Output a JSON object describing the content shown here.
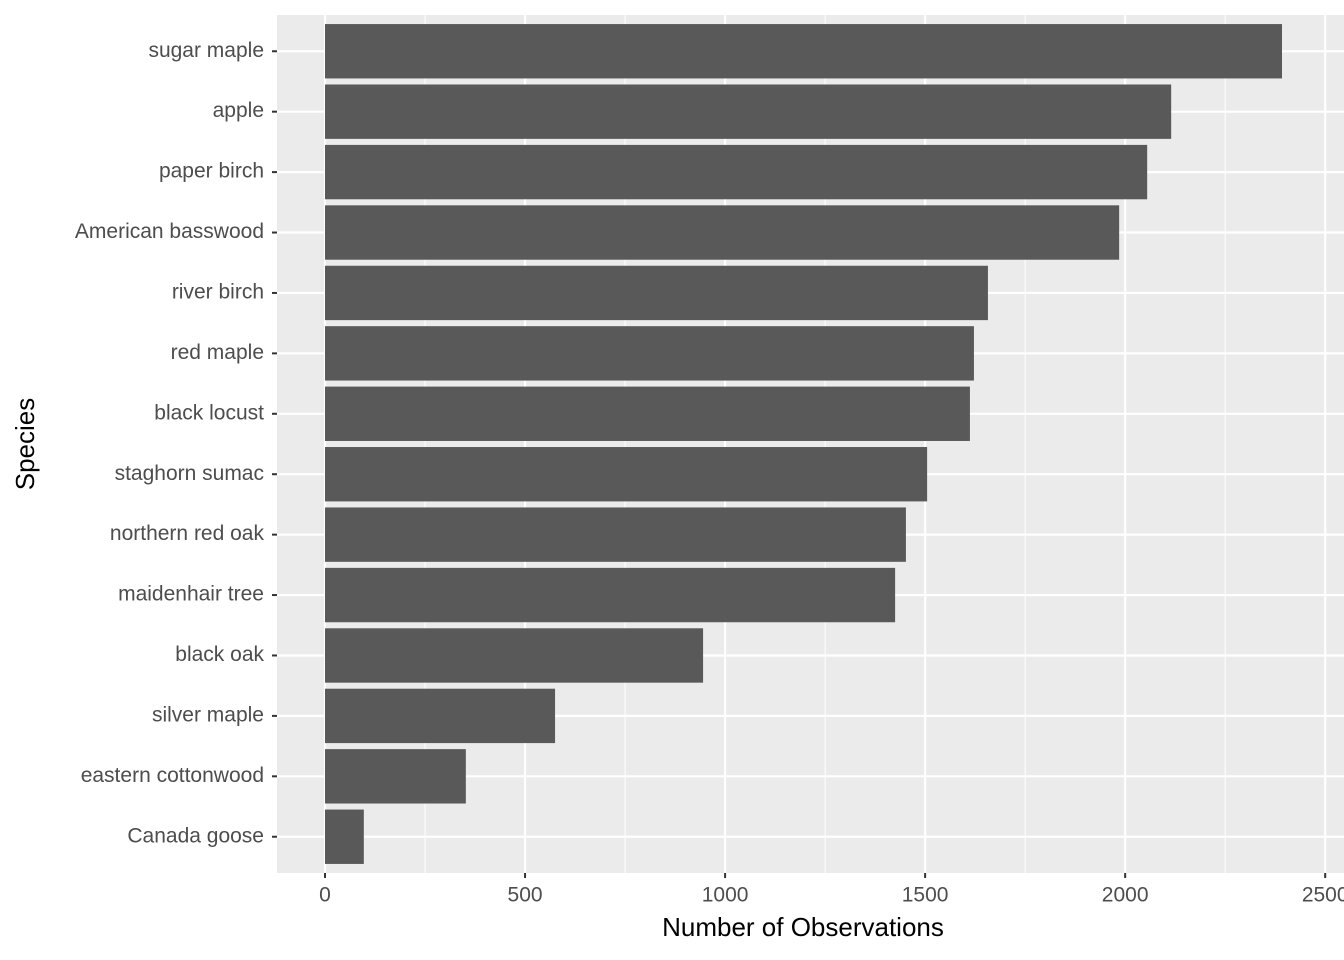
{
  "chart_data": {
    "type": "barh",
    "categories": [
      "sugar maple",
      "apple",
      "paper birch",
      "American basswood",
      "river birch",
      "red maple",
      "black locust",
      "staghorn sumac",
      "northern red oak",
      "maidenhair tree",
      "black oak",
      "silver maple",
      "eastern cottonwood",
      "Canada goose"
    ],
    "values": [
      2392,
      2115,
      2055,
      1985,
      1657,
      1622,
      1612,
      1505,
      1452,
      1425,
      945,
      575,
      352,
      97
    ],
    "color": "#595959",
    "x_label": "Number of Observations",
    "y_label": "Species",
    "xlim": [
      -120,
      2547
    ],
    "xticks": [
      0,
      500,
      1000,
      1500,
      2000,
      2500
    ],
    "x_minor_ticks": [
      250,
      750,
      1250,
      1750,
      2250
    ],
    "grid": true
  }
}
